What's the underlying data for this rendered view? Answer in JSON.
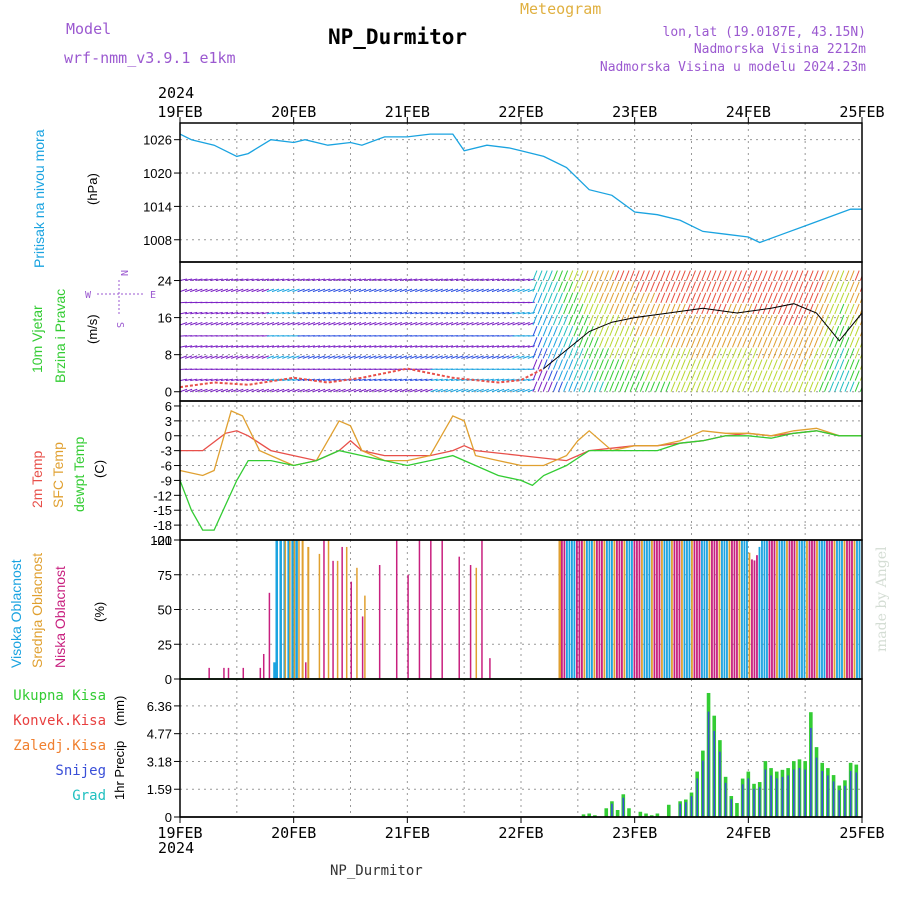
{
  "header": {
    "model_label": "Model",
    "model_name": "wrf-nmm_v3.9.1 e1km",
    "station_title": "NP_Durmitor",
    "product_label": "Meteogram",
    "lonlat": "lon,lat (19.0187E, 43.15N)",
    "altitude": "Nadmorska Visina 2212m",
    "model_altitude": "Nadmorska Visina u modelu 2024.23m",
    "credit": "made by Angel",
    "footer_station": "NP_Durmitor"
  },
  "colors": {
    "pressure": "#1aa3e0",
    "temp2m": "#e8504a",
    "sfc": "#e0a030",
    "dewpt": "#33cc33",
    "visoka": "#1aa3e0",
    "srednja": "#e0a030",
    "niska": "#c8207f",
    "ukupna": "#33cc33",
    "konvek": "#e84040",
    "zaledj": "#f08030",
    "snijeg": "#3a4fd8",
    "grad": "#20c0c0",
    "label_purple": "#9b59d0"
  },
  "icons": {
    "wind_compass": "compass-rose-icon"
  },
  "chart_data": [
    {
      "type": "line",
      "name": "pressure",
      "ylabel": "Pritisak na nivou mora",
      "units": "(hPa)",
      "yticks": [
        1008,
        1014,
        1020,
        1026
      ],
      "ylim": [
        1004,
        1029
      ],
      "year": "2024",
      "xticks": [
        "19FEB",
        "20FEB",
        "21FEB",
        "22FEB",
        "23FEB",
        "24FEB",
        "25FEB"
      ],
      "xlim_days": [
        0,
        6
      ],
      "x": [
        0,
        0.1,
        0.3,
        0.5,
        0.6,
        0.8,
        1.0,
        1.1,
        1.3,
        1.5,
        1.6,
        1.8,
        2.0,
        2.2,
        2.4,
        2.5,
        2.7,
        2.9,
        3.0,
        3.2,
        3.4,
        3.6,
        3.8,
        4.0,
        4.2,
        4.4,
        4.6,
        4.8,
        5.0,
        5.1,
        5.3,
        5.5,
        5.7,
        5.9,
        6.0
      ],
      "y": [
        1027,
        1026,
        1025,
        1023,
        1023.5,
        1026,
        1025.5,
        1026,
        1025,
        1025.5,
        1025,
        1026.5,
        1026.5,
        1027,
        1027,
        1024,
        1025,
        1024.5,
        1024,
        1023,
        1021,
        1017,
        1016,
        1013,
        1012.5,
        1011.5,
        1009.5,
        1009,
        1008.5,
        1007.5,
        1009,
        1010.5,
        1012,
        1013.5,
        1013.5
      ]
    },
    {
      "type": "scatter",
      "name": "wind",
      "ylabel": "10m Vjetar",
      "ylabel2": "Brzina i Pravac",
      "units": "(m/s)",
      "yticks": [
        0,
        8,
        16,
        24
      ],
      "ylim": [
        -2,
        28
      ],
      "compass": {
        "n": "N",
        "s": "S",
        "e": "E",
        "w": "W"
      },
      "speed_x": [
        0,
        0.3,
        0.6,
        1.0,
        1.3,
        1.6,
        2.0,
        2.4,
        2.8,
        3.0,
        3.2,
        3.4,
        3.6,
        3.8,
        4.0,
        4.3,
        4.6,
        4.9,
        5.2,
        5.4,
        5.6,
        5.8,
        6.0
      ],
      "speed_y": [
        1,
        2,
        1.5,
        3,
        2,
        3,
        5,
        3,
        2,
        2.5,
        5,
        9,
        13,
        15,
        16,
        17,
        18,
        17,
        18,
        19,
        17,
        11,
        17
      ]
    },
    {
      "type": "line",
      "name": "temperature",
      "ylabel": "2m Temp",
      "ylabel2": "SFC Temp",
      "ylabel3": "dewpt Temp",
      "units": "(C)",
      "yticks": [
        6,
        3,
        0,
        -3,
        -6,
        -9,
        -12,
        -15,
        -18,
        -21
      ],
      "ylim": [
        -21,
        7
      ],
      "series": [
        {
          "name": "2m",
          "x": [
            0,
            0.2,
            0.4,
            0.5,
            0.6,
            0.8,
            1.0,
            1.2,
            1.4,
            1.5,
            1.6,
            1.8,
            2.0,
            2.2,
            2.4,
            2.5,
            2.6,
            2.8,
            3.0,
            3.2,
            3.4,
            3.6,
            3.8,
            4.0,
            4.2,
            4.4,
            4.6,
            4.8,
            5.0,
            5.2,
            5.4,
            5.6,
            5.8,
            6.0
          ],
          "y": [
            -3,
            -3,
            0.5,
            1,
            0,
            -3,
            -4,
            -5,
            -3,
            -1,
            -3,
            -4,
            -4,
            -4,
            -3,
            -2,
            -3,
            -3.5,
            -4,
            -4.5,
            -5,
            -3,
            -2.5,
            -2,
            -2,
            -1.5,
            -1,
            0,
            0.5,
            0,
            0.5,
            1,
            0,
            0
          ]
        },
        {
          "name": "sfc",
          "x": [
            0,
            0.2,
            0.3,
            0.45,
            0.55,
            0.7,
            0.9,
            1.0,
            1.2,
            1.4,
            1.5,
            1.6,
            1.8,
            2.0,
            2.2,
            2.4,
            2.5,
            2.6,
            2.8,
            3.0,
            3.2,
            3.4,
            3.5,
            3.6,
            3.8,
            4.0,
            4.2,
            4.4,
            4.6,
            4.8,
            5.0,
            5.2,
            5.4,
            5.6,
            5.8,
            6.0
          ],
          "y": [
            -7,
            -8,
            -7,
            5,
            4,
            -3,
            -5,
            -6,
            -5,
            3,
            2,
            -3,
            -5,
            -5,
            -4,
            4,
            3,
            -4,
            -5,
            -6,
            -6,
            -4,
            -1,
            1,
            -3,
            -2,
            -2,
            -1,
            1,
            0.5,
            0.5,
            0,
            1,
            1.5,
            0,
            0
          ]
        },
        {
          "name": "dewpt",
          "x": [
            0,
            0.1,
            0.2,
            0.3,
            0.5,
            0.6,
            0.8,
            1.0,
            1.2,
            1.4,
            1.6,
            1.8,
            2.0,
            2.2,
            2.4,
            2.6,
            2.8,
            3.0,
            3.1,
            3.2,
            3.4,
            3.6,
            3.8,
            4.0,
            4.2,
            4.4,
            4.6,
            4.8,
            5.0,
            5.2,
            5.4,
            5.6,
            5.8,
            6.0
          ],
          "y": [
            -9,
            -15,
            -19,
            -19,
            -9,
            -5,
            -5,
            -6,
            -5,
            -3,
            -4,
            -5,
            -6,
            -5,
            -4,
            -6,
            -8,
            -9,
            -10,
            -8,
            -6,
            -3,
            -3,
            -3,
            -3,
            -1.5,
            -1,
            0,
            0,
            -0.5,
            0.5,
            1,
            0,
            0
          ]
        }
      ]
    },
    {
      "type": "bar",
      "name": "cloud",
      "ylabel": "Visoka Oblacnost",
      "ylabel2": "Srednja Oblacnost",
      "ylabel3": "Niska Oblacnost",
      "units": "(%)",
      "yticks": [
        0,
        25,
        50,
        75,
        100
      ],
      "ylim": [
        0,
        100
      ]
    },
    {
      "type": "bar",
      "name": "precip",
      "ylabel": "1hr Precip",
      "units": "(mm)",
      "yticks": [
        0,
        1.59,
        3.18,
        4.77,
        6.36
      ],
      "ylim": [
        0,
        7.9
      ],
      "legend": [
        "Ukupna Kisa",
        "Konvek.Kisa",
        "Zaledj.Kisa",
        "Snijeg",
        "Grad"
      ],
      "x": [
        3.55,
        3.6,
        3.65,
        3.75,
        3.8,
        3.85,
        3.9,
        3.95,
        4.05,
        4.1,
        4.15,
        4.2,
        4.3,
        4.4,
        4.45,
        4.5,
        4.55,
        4.6,
        4.65,
        4.7,
        4.75,
        4.8,
        4.85,
        4.9,
        4.95,
        5.0,
        5.05,
        5.1,
        5.15,
        5.2,
        5.25,
        5.3,
        5.35,
        5.4,
        5.45,
        5.5,
        5.55,
        5.6,
        5.65,
        5.7,
        5.75,
        5.8,
        5.85,
        5.9,
        5.95
      ],
      "values": [
        0.15,
        0.2,
        0.1,
        0.5,
        0.9,
        0.4,
        1.3,
        0.5,
        0.3,
        0.2,
        0.1,
        0.2,
        0.7,
        0.9,
        1.0,
        1.4,
        2.6,
        3.8,
        7.1,
        5.8,
        4.4,
        2.3,
        1.2,
        0.8,
        2.2,
        2.6,
        1.9,
        2.0,
        3.2,
        2.8,
        2.6,
        2.7,
        2.8,
        3.2,
        3.3,
        3.2,
        6.0,
        4.0,
        3.1,
        2.8,
        2.4,
        1.8,
        2.1,
        3.1,
        3.0
      ]
    }
  ],
  "footer_xticks": [
    "19FEB",
    "20FEB",
    "21FEB",
    "22FEB",
    "23FEB",
    "24FEB",
    "25FEB"
  ],
  "footer_year": "2024"
}
